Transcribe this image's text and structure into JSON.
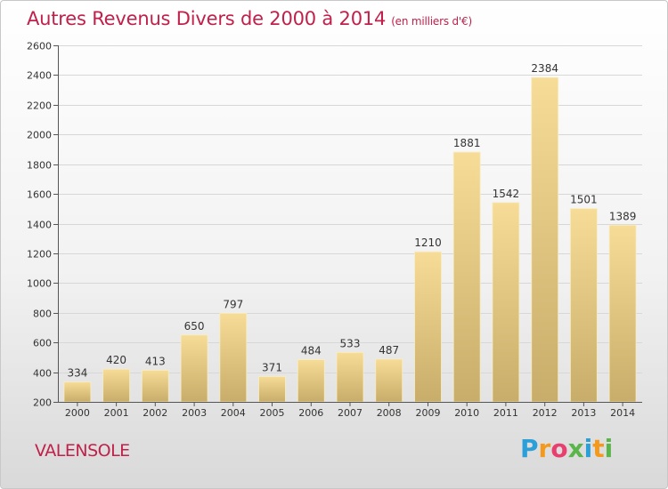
{
  "chart_data": {
    "type": "bar",
    "title": "Autres Revenus Divers de 2000 à 2014",
    "subtitle": "(en milliers d'€)",
    "categories": [
      "2000",
      "2001",
      "2002",
      "2003",
      "2004",
      "2005",
      "2006",
      "2007",
      "2008",
      "2009",
      "2010",
      "2011",
      "2012",
      "2013",
      "2014"
    ],
    "values": [
      334,
      420,
      413,
      650,
      797,
      371,
      484,
      533,
      487,
      1210,
      1881,
      1542,
      2384,
      1501,
      1389
    ],
    "yticks": [
      200,
      400,
      600,
      800,
      1000,
      1200,
      1400,
      1600,
      1800,
      2000,
      2200,
      2400,
      2600
    ],
    "ylim": [
      200,
      2600
    ],
    "grid": true,
    "xlabel": "",
    "ylabel": ""
  },
  "place_name": "VALENSOLE",
  "logo": {
    "letters": [
      "P",
      "r",
      "o",
      "x",
      "i",
      "t",
      "i"
    ],
    "colors": [
      "#2a9fd8",
      "#f39a1e",
      "#e83f6f",
      "#5ab54a",
      "#2a9fd8",
      "#f39a1e",
      "#5ab54a"
    ]
  },
  "colors": {
    "title": "#c0204a",
    "bar_top": "#f6dc96",
    "bar_bottom": "#c8ad6a",
    "grid": "#d7d7d7"
  }
}
